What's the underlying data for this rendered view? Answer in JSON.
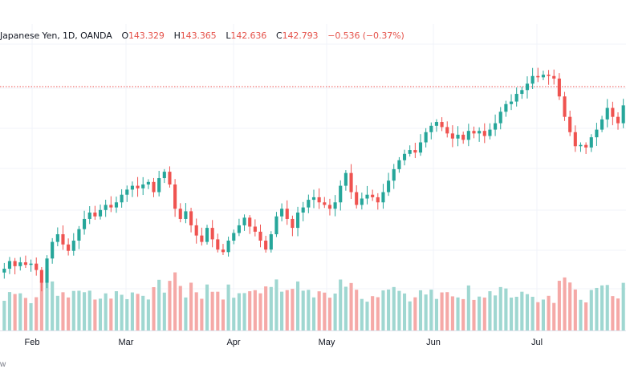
{
  "legend": {
    "symbol": "Japanese Yen, 1D, OANDA",
    "open_label": "O",
    "open": "143.329",
    "high_label": "H",
    "high": "143.365",
    "low_label": "L",
    "low": "142.636",
    "close_label": "C",
    "close": "142.793",
    "change": "−0.536 (−0.37%)"
  },
  "footer": {
    "text": "w"
  },
  "colors": {
    "up": "#26a69a",
    "down": "#ef5350",
    "up_volume": "#9fd7d1",
    "down_volume": "#f5a9a7",
    "price_line": "#ef5350"
  },
  "chart_data": {
    "type": "candlestick",
    "x_tick_labels": [
      "Feb",
      "Mar",
      "Apr",
      "May",
      "Jun",
      "Jul"
    ],
    "close_trend": [
      128.4,
      129.0,
      128.6,
      128.9,
      128.7,
      128.8,
      128.3,
      127.3,
      129.2,
      130.5,
      131.1,
      130.3,
      129.8,
      130.6,
      131.5,
      132.3,
      132.8,
      132.5,
      133.0,
      133.4,
      133.2,
      133.6,
      134.2,
      134.6,
      134.9,
      134.7,
      135.0,
      135.2,
      134.4,
      135.5,
      136.0,
      135.0,
      133.1,
      132.3,
      132.9,
      131.8,
      131.0,
      130.5,
      131.6,
      130.7,
      129.9,
      129.7,
      130.6,
      131.2,
      131.8,
      132.4,
      131.7,
      131.3,
      130.6,
      129.9,
      131.1,
      132.5,
      133.1,
      132.3,
      131.6,
      132.8,
      133.2,
      133.8,
      134.0,
      133.6,
      133.4,
      133.1,
      133.6,
      134.9,
      135.9,
      134.4,
      133.4,
      133.9,
      134.2,
      134.0,
      133.6,
      134.4,
      135.3,
      136.2,
      136.9,
      137.4,
      137.7,
      137.5,
      138.3,
      139.1,
      139.6,
      139.9,
      139.5,
      139.0,
      138.6,
      138.9,
      138.5,
      139.2,
      139.0,
      139.2,
      138.8,
      139.3,
      139.8,
      140.7,
      141.3,
      141.5,
      142.1,
      142.4,
      142.9,
      143.5,
      143.4,
      143.6,
      143.5,
      143.3,
      141.9,
      140.3,
      139.1,
      138.0,
      138.1,
      137.9,
      138.7,
      139.3,
      140.1,
      141.0,
      140.3,
      139.8,
      141.2
    ]
  }
}
